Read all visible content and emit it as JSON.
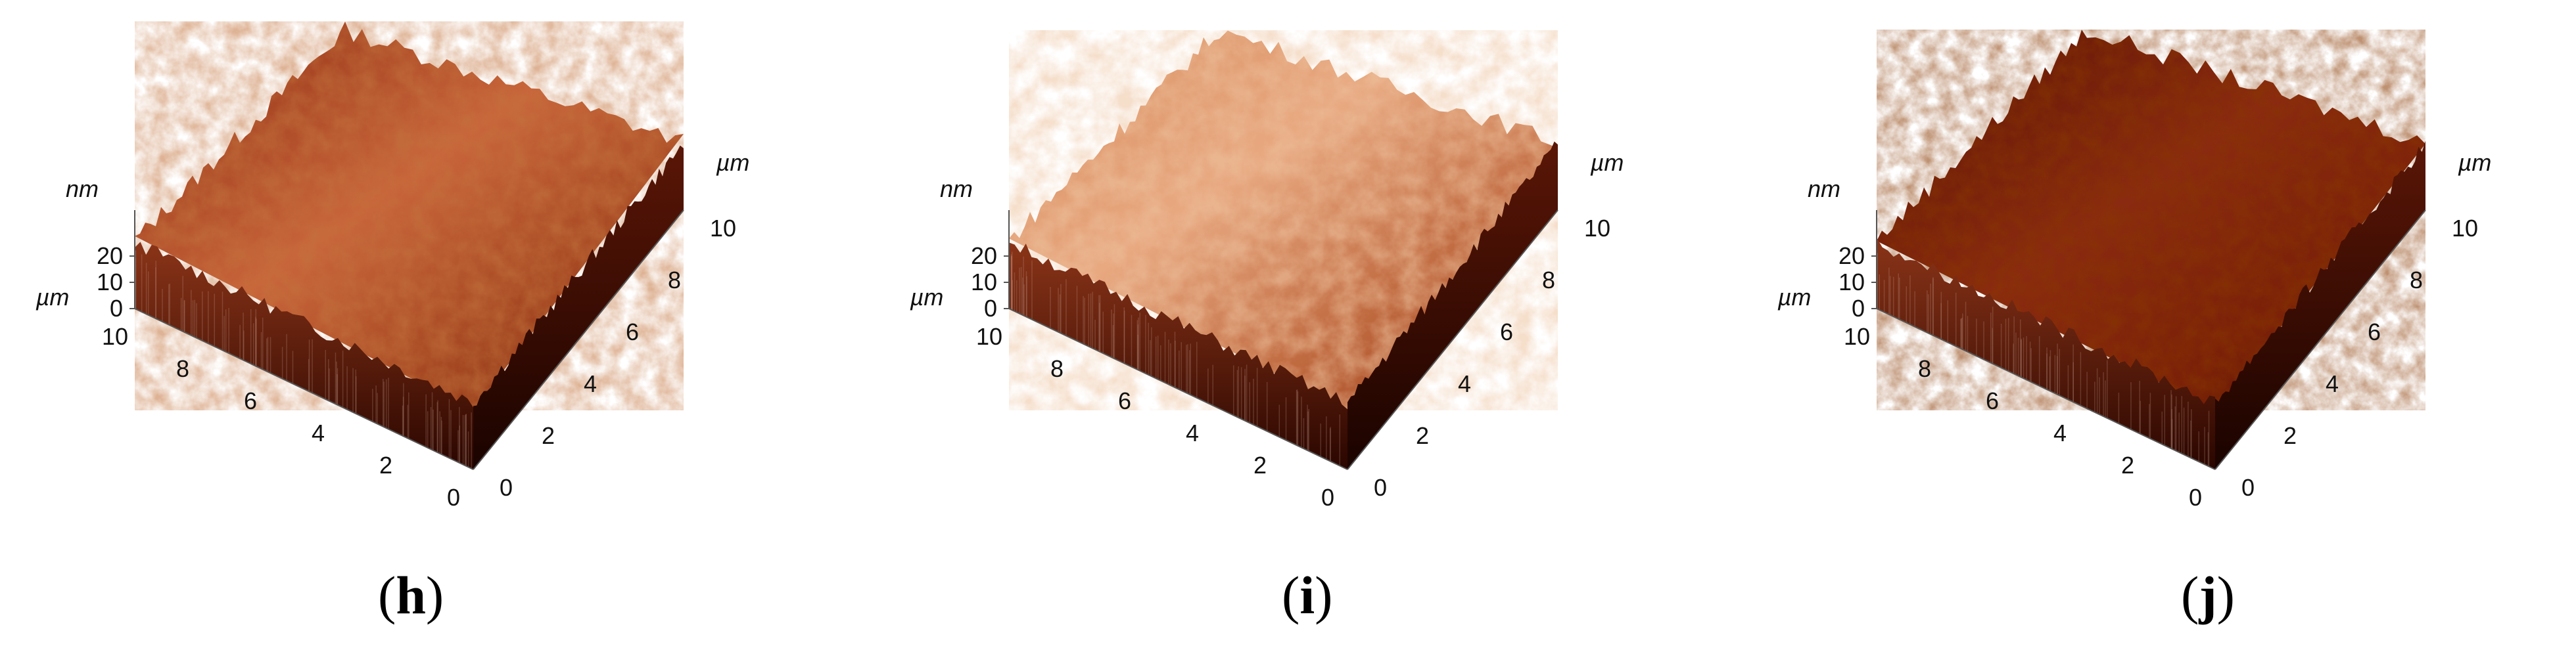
{
  "figure": {
    "panels": [
      {
        "id": "h",
        "label_open": "(",
        "label_letter": "h",
        "label_close": ")",
        "z_unit": "nm",
        "z_ticks": [
          "0",
          "10",
          "20"
        ],
        "left_unit": "µm",
        "left_ticks": [
          "0",
          "2",
          "4",
          "6",
          "8",
          "10"
        ],
        "right_unit": "µm",
        "right_ticks": [
          "0",
          "2",
          "4",
          "6",
          "8",
          "10"
        ],
        "surface_colors": [
          "#3a0800",
          "#f6c29a"
        ]
      },
      {
        "id": "i",
        "label_open": "(",
        "label_letter": "i",
        "label_close": ")",
        "z_unit": "nm",
        "z_ticks": [
          "0",
          "10",
          "20"
        ],
        "left_unit": "µm",
        "left_ticks": [
          "0",
          "2",
          "4",
          "6",
          "8",
          "10"
        ],
        "right_unit": "µm",
        "right_ticks": [
          "0",
          "2",
          "4",
          "6",
          "8",
          "10"
        ],
        "surface_colors": [
          "#3a0800",
          "#f8d0ac"
        ]
      },
      {
        "id": "j",
        "label_open": "(",
        "label_letter": "j",
        "label_close": ")",
        "z_unit": "nm",
        "z_ticks": [
          "0",
          "10",
          "20"
        ],
        "left_unit": "µm",
        "left_ticks": [
          "0",
          "2",
          "4",
          "6",
          "8",
          "10"
        ],
        "right_unit": "µm",
        "right_ticks": [
          "0",
          "2",
          "4",
          "6",
          "8",
          "10"
        ],
        "surface_colors": [
          "#2a0500",
          "#e89a70"
        ]
      }
    ]
  }
}
